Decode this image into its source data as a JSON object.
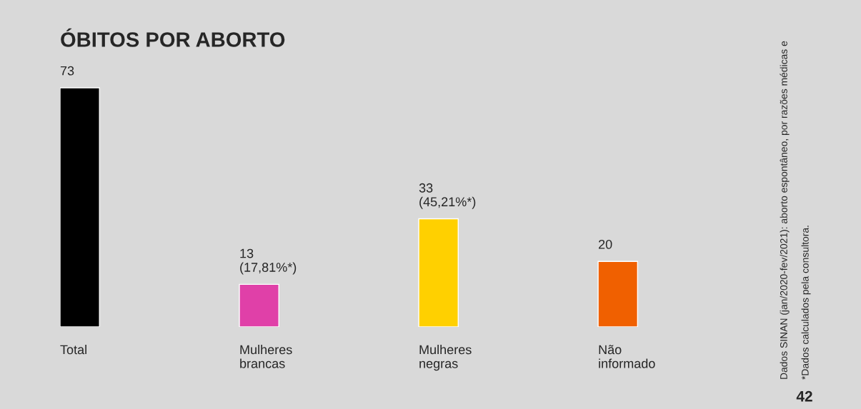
{
  "chart_data": {
    "type": "bar",
    "title": "ÓBITOS POR ABORTO",
    "categories": [
      "Total",
      "Mulheres\nbrancas",
      "Mulheres\nnegras",
      "Não\ninformado"
    ],
    "values": [
      73,
      13,
      33,
      20
    ],
    "colors": [
      "#000000",
      "#e040a8",
      "#ffd000",
      "#f06000"
    ],
    "value_labels": [
      "73",
      "13\n(17,81%*)",
      "33\n(45,21%*)",
      "20"
    ],
    "annotations": [
      "Dados SINAN (jan/2020-fev/2021): aborto espontâneo, por razões médicas e",
      "*Dados calculados pela consultora.",
      "42"
    ],
    "grid": false,
    "legend": false
  }
}
